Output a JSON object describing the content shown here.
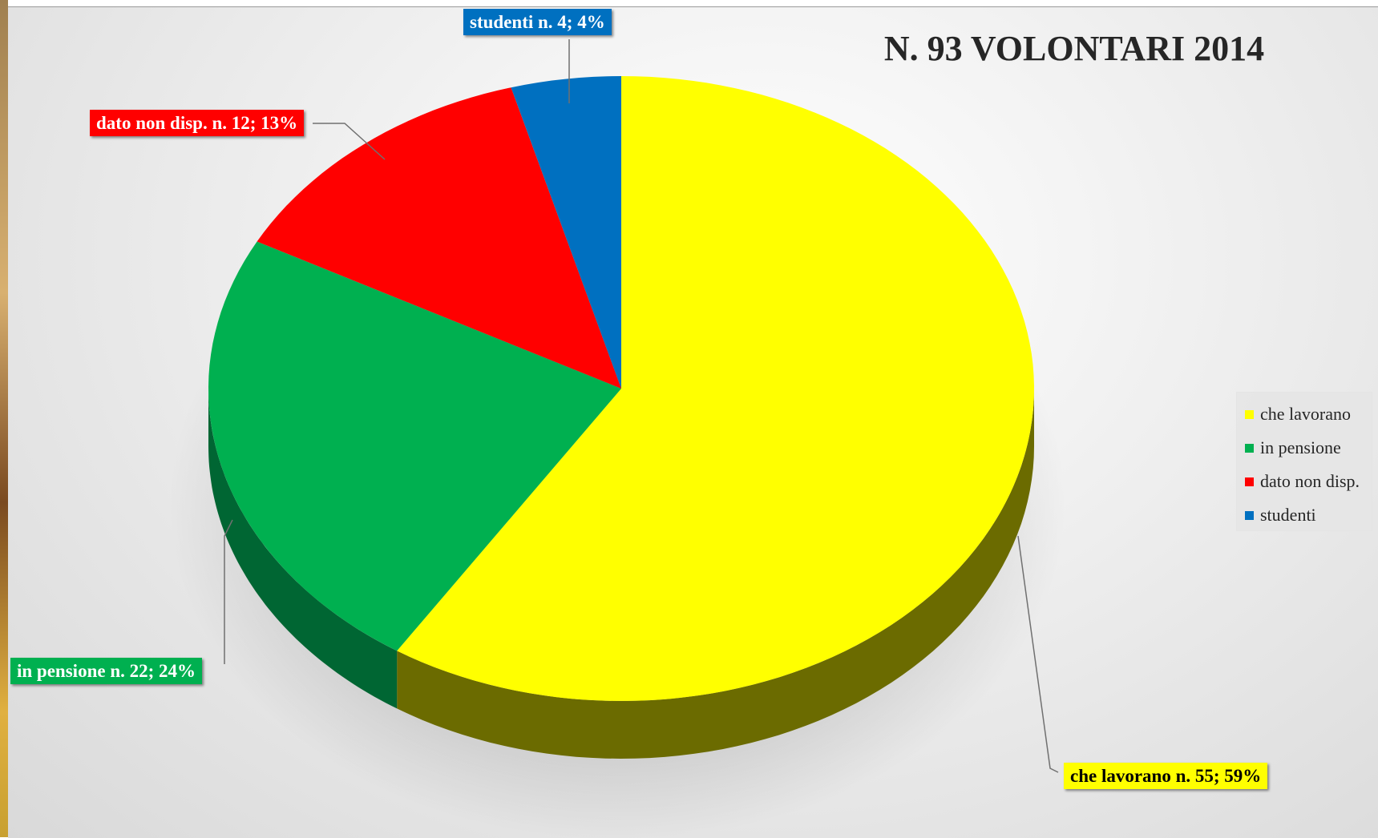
{
  "chart_data": {
    "type": "pie",
    "title": "N. 93 VOLONTARI 2014",
    "slices": [
      {
        "key": "lavorano",
        "name": "che lavorano",
        "value": 55,
        "percent": 59,
        "label": "che lavorano n. 55; 59%",
        "color": "#FFFF00",
        "side_color": "#6B6B00",
        "text_color": "#000000"
      },
      {
        "key": "pensione",
        "name": "in pensione",
        "value": 22,
        "percent": 24,
        "label": "in pensione n. 22; 24%",
        "color": "#00B050",
        "side_color": "#006633",
        "text_color": "#FFFFFF"
      },
      {
        "key": "nondisp",
        "name": "dato non disp.",
        "value": 12,
        "percent": 13,
        "label": "dato non disp. n. 12; 13%",
        "color": "#FF0000",
        "side_color": "#880000",
        "text_color": "#FFFFFF"
      },
      {
        "key": "studenti",
        "name": "studenti",
        "value": 4,
        "percent": 4,
        "label": "studenti n. 4; 4%",
        "color": "#0070C0",
        "side_color": "#003E6B",
        "text_color": "#FFFFFF"
      }
    ],
    "legend_placement": "right"
  }
}
